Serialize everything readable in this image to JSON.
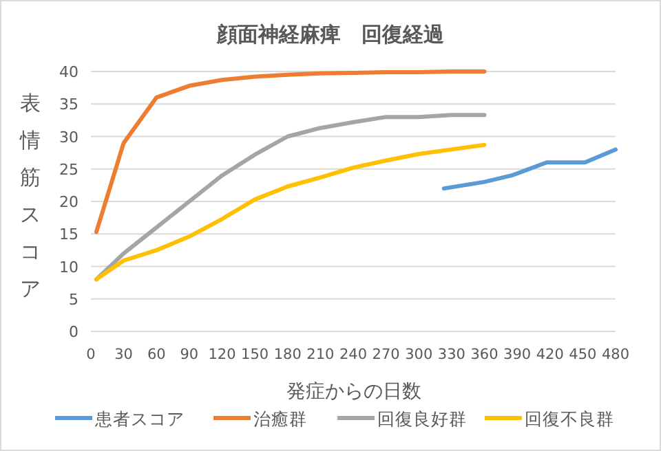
{
  "chart_data": {
    "type": "line",
    "title": "顔面神経麻痺　回復経過",
    "xlabel": "発症からの日数",
    "ylabel": "表情筋スコア",
    "xlim": [
      0,
      480
    ],
    "xticks": [
      0,
      30,
      60,
      90,
      120,
      150,
      180,
      210,
      240,
      270,
      300,
      330,
      360,
      390,
      420,
      450,
      480
    ],
    "ylim": [
      0,
      40
    ],
    "yticks": [
      0,
      5,
      10,
      15,
      20,
      25,
      30,
      35,
      40
    ],
    "grid": "y",
    "legend": "bottom",
    "marker": "none",
    "line_style": "solid",
    "series": [
      {
        "name": "患者スコア",
        "color": "#5b9bd5",
        "x": [
          323,
          360,
          385,
          417,
          452,
          480
        ],
        "values": [
          22,
          23,
          24,
          26,
          26,
          28
        ]
      },
      {
        "name": "治癒群",
        "color": "#ed7d31",
        "x": [
          5,
          30,
          60,
          90,
          120,
          150,
          180,
          210,
          240,
          270,
          300,
          330,
          360
        ],
        "values": [
          15.3,
          29,
          36,
          37.8,
          38.7,
          39.2,
          39.5,
          39.7,
          39.8,
          39.9,
          39.9,
          40,
          40
        ]
      },
      {
        "name": "回復良好群",
        "color": "#a5a5a5",
        "x": [
          5,
          30,
          60,
          90,
          120,
          150,
          180,
          210,
          240,
          270,
          300,
          330,
          360
        ],
        "values": [
          8,
          12,
          16,
          20,
          24,
          27.2,
          30,
          31.3,
          32.2,
          33,
          33,
          33.3,
          33.3
        ]
      },
      {
        "name": "回復不良群",
        "color": "#ffc000",
        "x": [
          5,
          30,
          60,
          90,
          120,
          150,
          180,
          210,
          240,
          270,
          300,
          330,
          360
        ],
        "values": [
          8,
          10.9,
          12.5,
          14.6,
          17.3,
          20.3,
          22.3,
          23.7,
          25.2,
          26.3,
          27.3,
          28,
          28.7
        ]
      }
    ]
  }
}
